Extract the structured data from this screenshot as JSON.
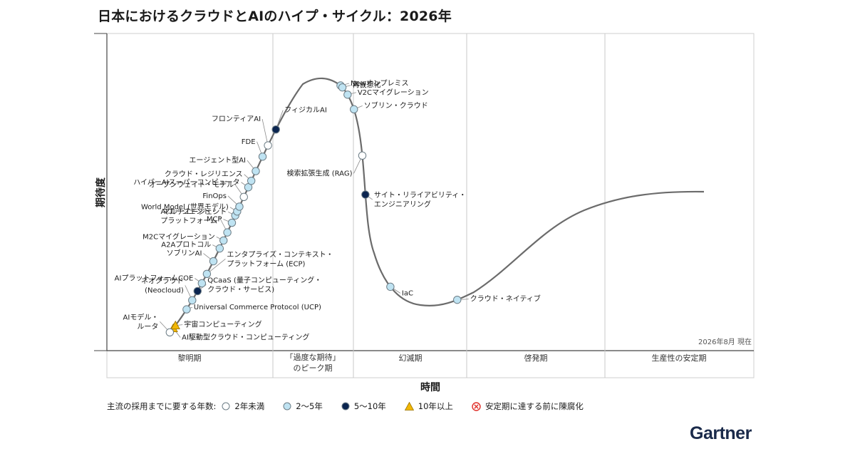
{
  "title": "日本におけるクラウドとAIのハイプ・サイクル：2026年",
  "date_note": "2026年8月 現在",
  "logo_text": "Gartner",
  "colors": {
    "curve": "#6b6b6b",
    "lt2": "#ffffff",
    "y2to5": "#bfe3f2",
    "y5to10": "#0b2550",
    "gt10": "#f2b705",
    "obsolete": "#e0302a",
    "marker_stroke": "#6d7d86"
  },
  "chart_data": {
    "type": "line",
    "title": "日本におけるクラウドとAIのハイプ・サイクル：2026年",
    "xlabel": "時間",
    "ylabel": "期待度",
    "grid": "phase dividers",
    "phases": [
      "黎明期",
      "「過度な期待」のピーク期",
      "幻滅期",
      "啓発期",
      "生産性の安定期"
    ],
    "phase_lines": [
      "「過度な期待」",
      "のピーク期"
    ],
    "legend": {
      "title": "主流の採用までに要する年数:",
      "items": [
        {
          "key": "lt2",
          "label": "2年未満"
        },
        {
          "key": "y2to5",
          "label": "2〜5年"
        },
        {
          "key": "y5to10",
          "label": "5〜10年"
        },
        {
          "key": "gt10",
          "label": "10年以上"
        },
        {
          "key": "obsolete",
          "label": "安定期に達する前に陳腐化"
        }
      ]
    },
    "points": [
      {
        "label": [
          "AI駆動型クラウド・コンピューティング"
        ],
        "cat": "gt10",
        "t": 0.01,
        "side": "right"
      },
      {
        "label": [
          "宇宙コンピューティング"
        ],
        "cat": "gt10",
        "t": 0.014,
        "side": "right"
      },
      {
        "label": [
          "AIモデル・",
          "ルータ"
        ],
        "cat": "lt2",
        "t": 0.004,
        "side": "left"
      },
      {
        "label": [
          "Universal Commerce Protocol (UCP)"
        ],
        "cat": "y2to5",
        "t": 0.036,
        "side": "right"
      },
      {
        "label": [
          "ネオクラウド",
          "(Neocloud)"
        ],
        "cat": "y2to5",
        "t": 0.048,
        "side": "left"
      },
      {
        "label": [
          "QCaaS (量子コンピューティング・",
          "クラウド・サービス)"
        ],
        "cat": "y5to10",
        "t": 0.06,
        "side": "right"
      },
      {
        "label": [
          "AIプラットフォームCOE"
        ],
        "cat": "y2to5",
        "t": 0.07,
        "side": "left"
      },
      {
        "label": [
          "エンタプライズ・コンテキスト・",
          "プラットフォーム (ECP)"
        ],
        "cat": "y2to5",
        "t": 0.082,
        "side": "right"
      },
      {
        "label": [
          "ソブリンAI"
        ],
        "cat": "y2to5",
        "t": 0.098,
        "side": "left"
      },
      {
        "label": [
          "A2Aプロトコル"
        ],
        "cat": "y2to5",
        "t": 0.114,
        "side": "left"
      },
      {
        "label": [
          "M2Cマイグレーション"
        ],
        "cat": "y2to5",
        "t": 0.124,
        "side": "left"
      },
      {
        "label": [
          "AIエージェント・",
          "プラットフォーム"
        ],
        "cat": "y2to5",
        "t": 0.134,
        "side": "left"
      },
      {
        "label": [
          "MCP"
        ],
        "cat": "y2to5",
        "t": 0.146,
        "side": "left"
      },
      {
        "label": [
          "マルチエージェント"
        ],
        "cat": "y2to5",
        "t": 0.155,
        "side": "left"
      },
      {
        "label": [
          "World Model (世界モデル)"
        ],
        "cat": "y2to5",
        "t": 0.16,
        "side": "left"
      },
      {
        "label": [
          "FinOps"
        ],
        "cat": "y2to5",
        "t": 0.166,
        "side": "left"
      },
      {
        "label": [
          "オープンウェイト・モデル"
        ],
        "cat": "lt2",
        "t": 0.178,
        "side": "left"
      },
      {
        "label": [
          "ハイパーAIスーパーコンピュータ"
        ],
        "cat": "y2to5",
        "t": 0.19,
        "side": "left"
      },
      {
        "label": [
          "クラウド・レジリエンス"
        ],
        "cat": "y2to5",
        "t": 0.198,
        "side": "left"
      },
      {
        "label": [
          "エージェント型AI"
        ],
        "cat": "y2to5",
        "t": 0.21,
        "side": "left"
      },
      {
        "label": [
          "FDE"
        ],
        "cat": "y2to5",
        "t": 0.228,
        "side": "left"
      },
      {
        "label": [
          "フロンティアAI"
        ],
        "cat": "lt2",
        "t": 0.242,
        "side": "left"
      },
      {
        "label": [
          "フィジカルAI"
        ],
        "cat": "y5to10",
        "t": 0.262,
        "side": "right"
      },
      {
        "label": [
          "Newオンプレミス"
        ],
        "cat": "y2to5",
        "t": 0.367,
        "side": "right"
      },
      {
        "label": [
          "再仮想化"
        ],
        "cat": "y2to5",
        "t": 0.37,
        "side": "right"
      },
      {
        "label": [
          "V2Cマイグレーション"
        ],
        "cat": "y2to5",
        "t": 0.38,
        "side": "right"
      },
      {
        "label": [
          "ソブリン・クラウド"
        ],
        "cat": "y2to5",
        "t": 0.398,
        "side": "right"
      },
      {
        "label": [
          "検索拡張生成 (RAG)"
        ],
        "cat": "lt2",
        "t": 0.451,
        "side": "left"
      },
      {
        "label": [
          "サイト・リライアビリティ・",
          "エンジニアリング"
        ],
        "cat": "y5to10",
        "t": 0.495,
        "side": "right"
      },
      {
        "label": [
          "IaC"
        ],
        "cat": "y2to5",
        "t": 0.604,
        "side": "right"
      },
      {
        "label": [
          "クラウド・ネイティブ"
        ],
        "cat": "y2to5",
        "t": 0.687,
        "side": "right"
      }
    ]
  }
}
